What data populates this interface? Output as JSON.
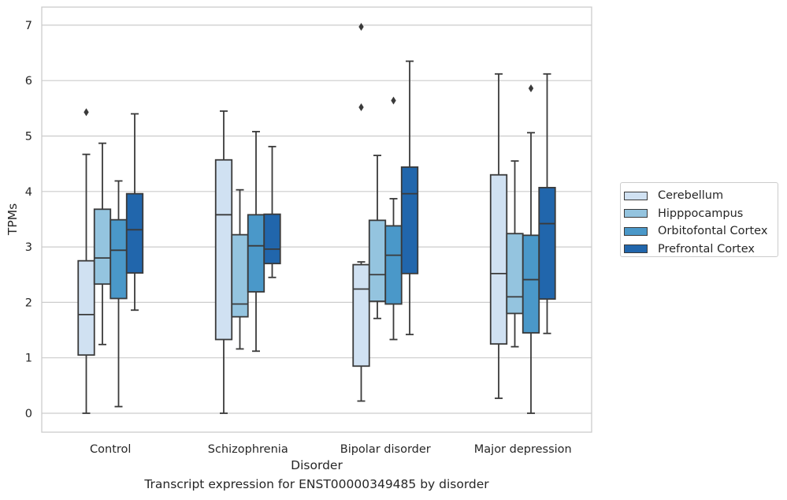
{
  "chart_data": {
    "type": "box",
    "title": "Transcript expression for ENST00000349485 by disorder",
    "xlabel": "Disorder",
    "ylabel": "TPMs",
    "ylim": [
      -0.33,
      7.33
    ],
    "yticks": [
      0,
      1,
      2,
      3,
      4,
      5,
      6,
      7
    ],
    "grid": true,
    "legend_position": "right",
    "categories": [
      "Control",
      "Schizophrenia",
      "Bipolar disorder",
      "Major depression"
    ],
    "series": [
      {
        "name": "Cerebellum",
        "color": "#d0e1f2",
        "boxes": [
          {
            "whisker_low": 0.0,
            "q1": 1.05,
            "median": 1.78,
            "q3": 2.75,
            "whisker_high": 4.67,
            "outliers": [
              5.43
            ]
          },
          {
            "whisker_low": 0.0,
            "q1": 1.33,
            "median": 3.58,
            "q3": 4.57,
            "whisker_high": 5.45,
            "outliers": []
          },
          {
            "whisker_low": 0.22,
            "q1": 0.85,
            "median": 2.24,
            "q3": 2.68,
            "whisker_high": 2.73,
            "outliers": [
              5.52,
              6.97
            ]
          },
          {
            "whisker_low": 0.27,
            "q1": 1.25,
            "median": 2.52,
            "q3": 4.3,
            "whisker_high": 6.12,
            "outliers": []
          }
        ]
      },
      {
        "name": "Hipppocampus",
        "color": "#94c4df",
        "boxes": [
          {
            "whisker_low": 1.24,
            "q1": 2.33,
            "median": 2.8,
            "q3": 3.68,
            "whisker_high": 4.87,
            "outliers": []
          },
          {
            "whisker_low": 1.16,
            "q1": 1.74,
            "median": 1.97,
            "q3": 3.22,
            "whisker_high": 4.03,
            "outliers": []
          },
          {
            "whisker_low": 1.71,
            "q1": 2.02,
            "median": 2.5,
            "q3": 3.48,
            "whisker_high": 4.65,
            "outliers": []
          },
          {
            "whisker_low": 1.2,
            "q1": 1.8,
            "median": 2.1,
            "q3": 3.24,
            "whisker_high": 4.55,
            "outliers": []
          }
        ]
      },
      {
        "name": "Orbitofontal Cortex",
        "color": "#4a98c9",
        "boxes": [
          {
            "whisker_low": 0.12,
            "q1": 2.07,
            "median": 2.94,
            "q3": 3.49,
            "whisker_high": 4.19,
            "outliers": []
          },
          {
            "whisker_low": 1.12,
            "q1": 2.19,
            "median": 3.02,
            "q3": 3.58,
            "whisker_high": 5.08,
            "outliers": []
          },
          {
            "whisker_low": 1.33,
            "q1": 1.97,
            "median": 2.85,
            "q3": 3.38,
            "whisker_high": 3.87,
            "outliers": [
              5.64
            ]
          },
          {
            "whisker_low": 0.0,
            "q1": 1.45,
            "median": 2.41,
            "q3": 3.21,
            "whisker_high": 5.06,
            "outliers": [
              5.86
            ]
          }
        ]
      },
      {
        "name": "Prefrontal Cortex",
        "color": "#2166ac",
        "boxes": [
          {
            "whisker_low": 1.86,
            "q1": 2.53,
            "median": 3.31,
            "q3": 3.96,
            "whisker_high": 5.4,
            "outliers": []
          },
          {
            "whisker_low": 2.45,
            "q1": 2.7,
            "median": 2.96,
            "q3": 3.59,
            "whisker_high": 4.81,
            "outliers": []
          },
          {
            "whisker_low": 1.42,
            "q1": 2.52,
            "median": 3.96,
            "q3": 4.44,
            "whisker_high": 6.35,
            "outliers": []
          },
          {
            "whisker_low": 1.44,
            "q1": 2.06,
            "median": 3.42,
            "q3": 4.07,
            "whisker_high": 6.12,
            "outliers": []
          }
        ]
      }
    ]
  }
}
